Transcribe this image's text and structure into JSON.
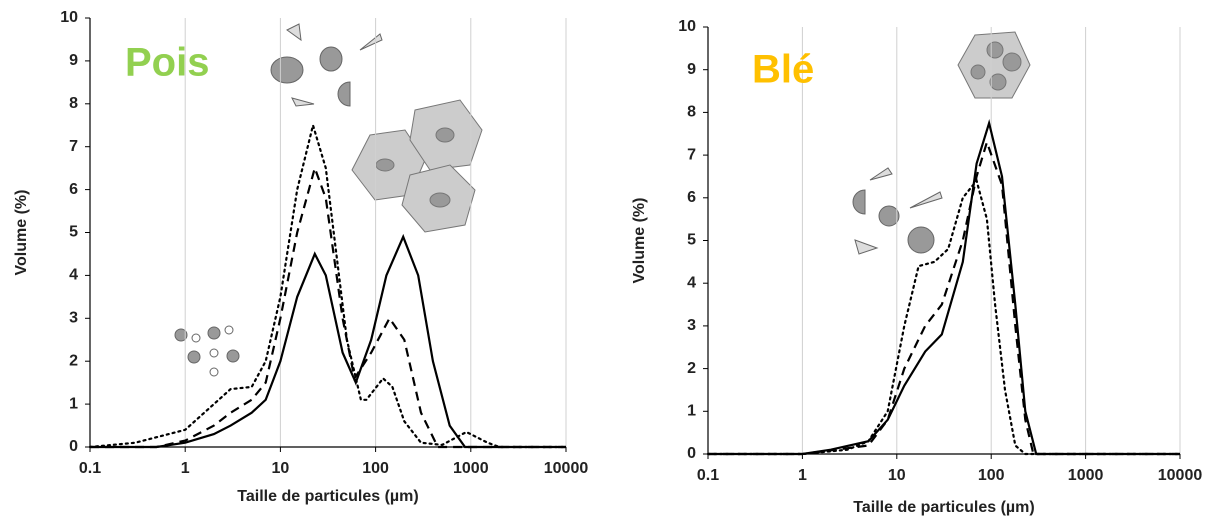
{
  "chart_data": [
    {
      "type": "line",
      "annotation": "Pois",
      "annotation_color": "#92d050",
      "xlabel": "Taille de particules (µm)",
      "ylabel": "Volume (%)",
      "log_x": true,
      "grid": "x",
      "xlim": [
        0.1,
        10000
      ],
      "xticks": [
        0.1,
        1,
        10,
        100,
        1000,
        10000
      ],
      "ylim": [
        0,
        10
      ],
      "yticks": [
        0,
        1,
        2,
        3,
        4,
        5,
        6,
        7,
        8,
        9,
        10
      ],
      "series": [
        {
          "color": "#000000",
          "dash": "solid",
          "x": [
            0.1,
            0.5,
            1,
            2,
            3,
            5,
            7,
            10,
            15,
            23,
            30,
            45,
            62,
            90,
            130,
            195,
            280,
            400,
            600,
            870,
            10000
          ],
          "values": [
            0,
            0,
            0.1,
            0.3,
            0.5,
            0.8,
            1.1,
            2,
            3.5,
            4.5,
            4,
            2.2,
            1.5,
            2.5,
            4,
            4.9,
            4,
            2,
            0.5,
            0,
            0
          ]
        },
        {
          "color": "#000000",
          "dash": "dashed",
          "x": [
            0.1,
            0.5,
            1,
            2,
            3,
            5,
            7,
            10,
            15,
            23,
            30,
            45,
            60,
            90,
            140,
            200,
            300,
            450,
            10000
          ],
          "values": [
            0,
            0,
            0.15,
            0.5,
            0.8,
            1.1,
            1.5,
            3,
            5,
            6.5,
            5.8,
            3,
            1.6,
            2.2,
            3,
            2.5,
            0.8,
            0,
            0
          ]
        },
        {
          "color": "#000000",
          "dash": "dotted",
          "x": [
            0.1,
            0.3,
            1,
            2,
            3,
            5,
            7,
            10,
            15,
            22,
            30,
            50,
            70,
            80,
            120,
            150,
            200,
            300,
            500,
            900,
            1500,
            2000,
            10000
          ],
          "values": [
            0,
            0.1,
            0.4,
            1,
            1.35,
            1.4,
            2,
            3.5,
            6,
            7.5,
            6.5,
            2.5,
            1.1,
            1.1,
            1.6,
            1.4,
            0.6,
            0.1,
            0.05,
            0.35,
            0.1,
            0,
            0
          ]
        }
      ]
    },
    {
      "type": "line",
      "annotation": "Blé",
      "annotation_color": "#ffc000",
      "xlabel": "Taille de particules (µm)",
      "ylabel": "Volume (%)",
      "log_x": true,
      "grid": "x",
      "xlim": [
        0.1,
        10000
      ],
      "xticks": [
        0.1,
        1,
        10,
        100,
        1000,
        10000
      ],
      "ylim": [
        0,
        10
      ],
      "yticks": [
        0,
        1,
        2,
        3,
        4,
        5,
        6,
        7,
        8,
        9,
        10
      ],
      "series": [
        {
          "color": "#000000",
          "dash": "solid",
          "x": [
            0.1,
            1,
            2,
            5,
            8,
            12,
            20,
            30,
            50,
            70,
            95,
            130,
            180,
            230,
            300,
            10000
          ],
          "values": [
            0,
            0,
            0.1,
            0.3,
            0.8,
            1.6,
            2.4,
            2.8,
            4.5,
            6.8,
            7.75,
            6.5,
            3.5,
            1,
            0,
            0
          ]
        },
        {
          "color": "#000000",
          "dash": "dashed",
          "x": [
            0.1,
            1,
            5,
            8,
            12,
            20,
            30,
            50,
            70,
            90,
            130,
            180,
            230,
            280,
            10000
          ],
          "values": [
            0,
            0,
            0.2,
            0.8,
            2,
            3,
            3.5,
            5,
            6.5,
            7.3,
            6.3,
            3,
            0.8,
            0,
            0
          ]
        },
        {
          "color": "#000000",
          "dash": "dotted",
          "x": [
            0.1,
            1,
            3,
            5,
            8,
            12,
            17,
            25,
            35,
            50,
            70,
            90,
            110,
            140,
            180,
            230,
            10000
          ],
          "values": [
            0,
            0,
            0.1,
            0.3,
            1,
            3,
            4.4,
            4.5,
            4.8,
            6,
            6.4,
            5.5,
            3.5,
            1.5,
            0.2,
            0,
            0
          ]
        }
      ]
    }
  ]
}
